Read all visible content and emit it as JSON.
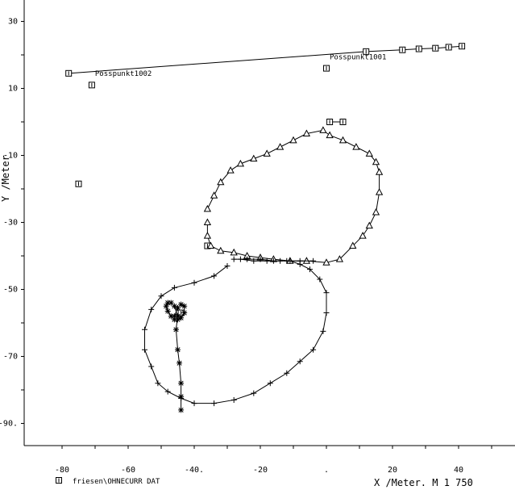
{
  "chart_data": {
    "type": "line",
    "title": "",
    "xlabel": "X /Meter. M 1 750",
    "ylabel": "Y /Meter",
    "xlim": [
      -85,
      56
    ],
    "ylim": [
      -96,
      35
    ],
    "x_ticks": [
      "-80",
      "-60",
      "-40.",
      "-20",
      ".",
      "20",
      "40"
    ],
    "x_tick_values": [
      -80,
      -60,
      -40,
      -20,
      0,
      20,
      40
    ],
    "y_ticks": [
      "30",
      "10",
      "-10",
      "-30",
      "-50",
      "-70",
      "-90."
    ],
    "y_tick_values": [
      30,
      10,
      -10,
      -30,
      -50,
      -70,
      -90
    ],
    "grid": false,
    "footer_legend": {
      "marker": "square-i",
      "text": "friesen\\OHNECURR DAT"
    },
    "annotations": [
      {
        "text": "Posspunkt1001",
        "x": 0,
        "y": 18
      },
      {
        "text": "Posspunkt1002",
        "x": -71,
        "y": 13
      }
    ],
    "series": [
      {
        "marker": "square-i",
        "mode": "line+markers",
        "x": [
          -78,
          12,
          23,
          28,
          33,
          37,
          41
        ],
        "y": [
          14.5,
          21,
          21.5,
          21.8,
          22,
          22.3,
          22.6
        ]
      },
      {
        "marker": "square-i",
        "mode": "line+markers",
        "x": [
          1,
          5
        ],
        "y": [
          0,
          0
        ]
      },
      {
        "marker": "square-i",
        "mode": "markers",
        "x": [
          -71,
          0,
          -75,
          -36,
          -44
        ],
        "y": [
          11,
          16,
          -18.5,
          -37,
          -57
        ]
      },
      {
        "marker": "triangle",
        "mode": "line+markers",
        "x": [
          -36,
          -34,
          -32,
          -29,
          -26,
          -22,
          -18,
          -14,
          -10,
          -6,
          -1,
          1,
          5,
          9,
          13,
          15,
          16,
          16,
          15,
          13,
          11,
          8,
          4,
          0,
          -6,
          -11,
          -16,
          -20,
          -24,
          -28,
          -32,
          -35,
          -36,
          -36
        ],
        "y": [
          -26,
          -22,
          -18,
          -14.5,
          -12.5,
          -11,
          -9.5,
          -7.5,
          -5.5,
          -3.5,
          -2.5,
          -4,
          -5.5,
          -7.5,
          -9.5,
          -12,
          -15,
          -21,
          -27,
          -31,
          -34,
          -37,
          -41,
          -42,
          -41.5,
          -41.5,
          -41,
          -40.5,
          -40,
          -39,
          -38.5,
          -37,
          -34,
          -30
        ]
      },
      {
        "marker": "plus",
        "mode": "line+markers",
        "x": [
          -30,
          -34,
          -40,
          -46,
          -50,
          -53,
          -55,
          -55,
          -53,
          -51,
          -48,
          -44,
          -40,
          -34,
          -28,
          -22,
          -17,
          -12,
          -8,
          -4,
          -1,
          0,
          0,
          -2,
          -5,
          -8,
          -11,
          -14,
          -18,
          -22,
          -26,
          -28,
          -24,
          -20,
          -16,
          -12,
          -8,
          -4
        ],
        "y": [
          -43,
          -46,
          -48,
          -49.5,
          -52,
          -56,
          -62,
          -68,
          -73,
          -78,
          -80.5,
          -82.5,
          -84,
          -84,
          -83,
          -81,
          -78,
          -75,
          -71.5,
          -68,
          -62.5,
          -57,
          -51,
          -47,
          -44,
          -42.5,
          -41.5,
          -41.5,
          -41.5,
          -41.5,
          -41,
          -41,
          -41,
          -41,
          -41.5,
          -41.5,
          -41.5,
          -41.5
        ]
      },
      {
        "marker": "asterisk",
        "mode": "line+markers",
        "x": [
          -46,
          -45,
          -44,
          -43,
          -43,
          -44,
          -45,
          -46,
          -47,
          -48,
          -48.5,
          -48,
          -47,
          -46,
          -45,
          -45.5,
          -45,
          -44.5,
          -44,
          -44,
          -44
        ],
        "y": [
          -58,
          -55.5,
          -54.5,
          -55,
          -57,
          -58.5,
          -59,
          -59,
          -58,
          -56.5,
          -55,
          -54,
          -54,
          -55,
          -58,
          -62,
          -68,
          -72,
          -78,
          -82,
          -86
        ]
      }
    ]
  }
}
